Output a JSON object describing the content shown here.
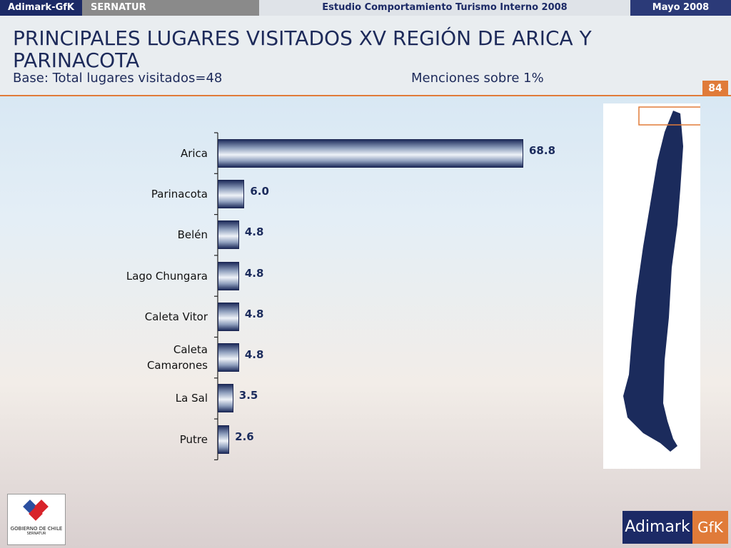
{
  "header": {
    "brand": "Adimark-GfK",
    "client": "SERNATUR",
    "study": "Estudio Comportamiento Turismo Interno 2008",
    "date": "Mayo 2008"
  },
  "page_number": "84",
  "logos": {
    "gobierno": "GOBIERNO DE CHILE",
    "sernatur": "SERNATUR",
    "adimark": "Adimark",
    "gfk": "GfK"
  },
  "chart_data": {
    "type": "hbar",
    "title": "PRINCIPALES LUGARES VISITADOS XV REGIÓN DE ARICA Y PARINACOTA",
    "subtitle": "Base: Total lugares visitados=48",
    "note": "Menciones sobre 1%",
    "categories": [
      "Arica",
      "Parinacota",
      "Belén",
      "Lago Chungara",
      "Caleta Vitor",
      "Caleta Camarones",
      "La Sal",
      "Putre"
    ],
    "values": [
      68.8,
      6.0,
      4.8,
      4.8,
      4.8,
      4.8,
      3.5,
      2.6
    ],
    "value_labels": [
      "68.8",
      "6.0",
      "4.8",
      "4.8",
      "4.8",
      "4.8",
      "3.5",
      "2.6"
    ],
    "color": "#1f2d5c"
  }
}
